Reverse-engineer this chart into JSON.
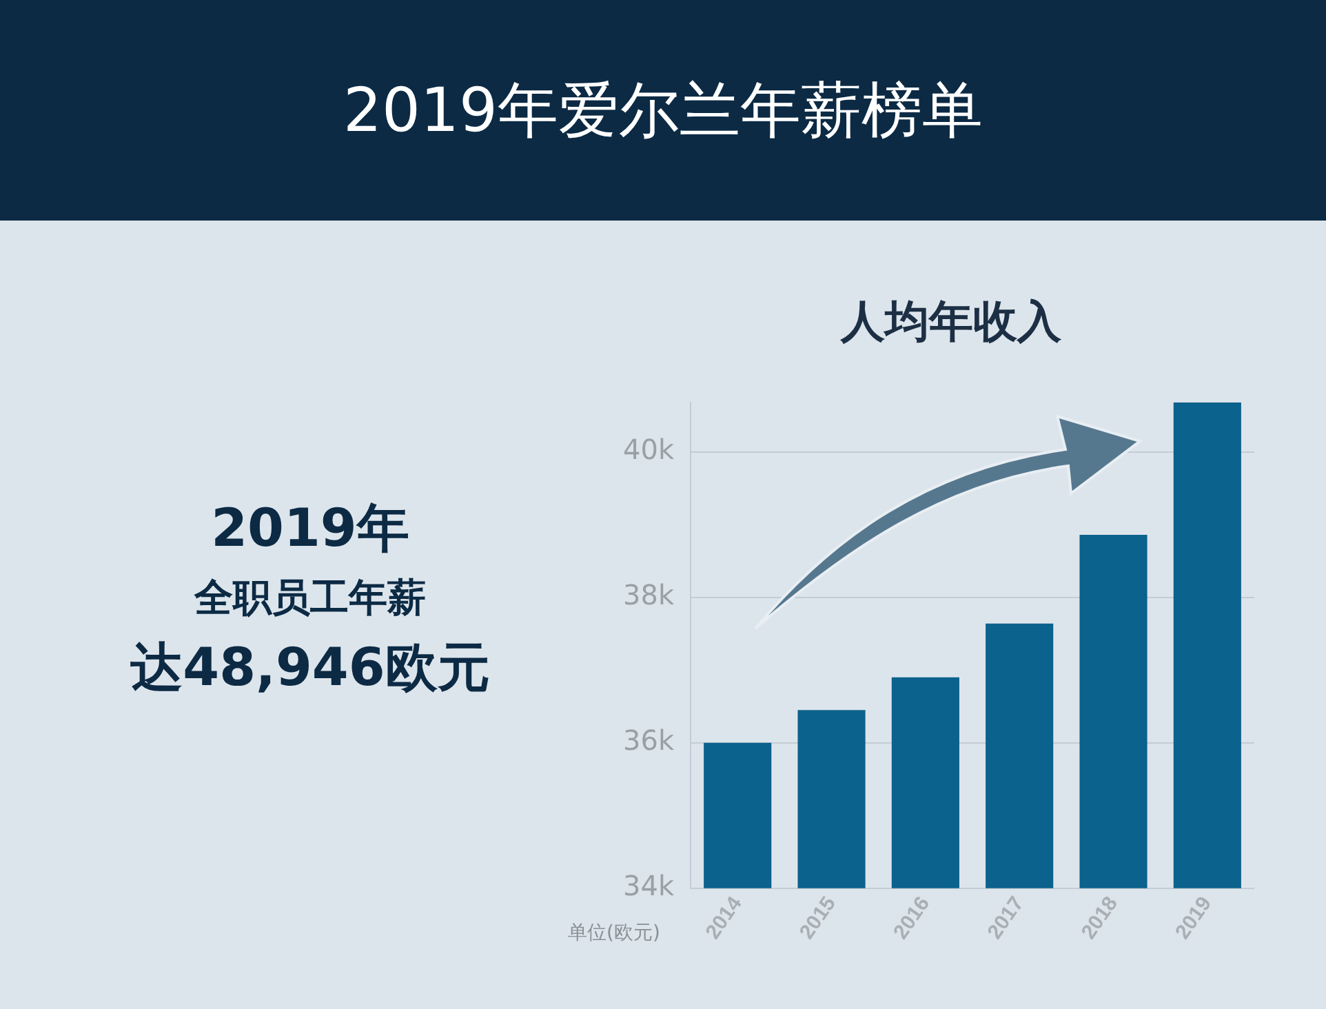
{
  "chart_data": {
    "type": "bar",
    "title": "2019年爱尔兰年薪榜单",
    "subtitle": "人均年收入",
    "ylabel": "单位(欧元)",
    "annotations": [
      "2019年",
      "全职员工年薪",
      "达48,946欧元"
    ],
    "categories": [
      "2014",
      "2015",
      "2016",
      "2017",
      "2018",
      "2019"
    ],
    "values": [
      36000,
      36450,
      36900,
      37640,
      38860,
      40680
    ],
    "color": "#0b628c",
    "ylim": [
      34000,
      40680
    ],
    "yticks": [
      {
        "value": 34000,
        "label": "34k"
      },
      {
        "value": 36000,
        "label": "36k"
      },
      {
        "value": 38000,
        "label": "38k"
      },
      {
        "value": 40000,
        "label": "40k"
      }
    ],
    "grid": "y",
    "legend": false
  }
}
